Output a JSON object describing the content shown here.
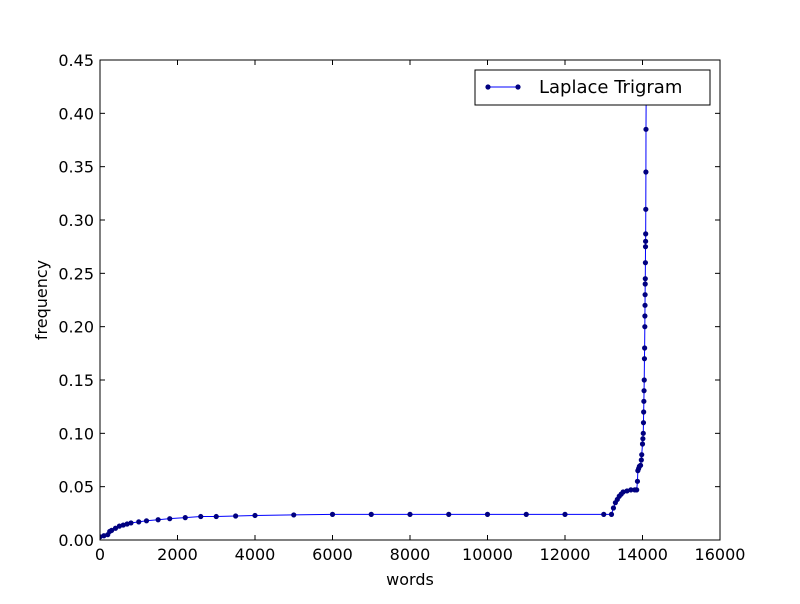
{
  "chart_data": {
    "type": "line",
    "title": "",
    "xlabel": "words",
    "ylabel": "frequency",
    "xlim": [
      0,
      16000
    ],
    "ylim": [
      0,
      0.45
    ],
    "x_ticks": [
      0,
      2000,
      4000,
      6000,
      8000,
      10000,
      12000,
      14000,
      16000
    ],
    "x_tick_labels": [
      "0",
      "2000",
      "4000",
      "6000",
      "8000",
      "10000",
      "12000",
      "14000",
      "16000"
    ],
    "y_ticks": [
      0,
      0.05,
      0.1,
      0.15,
      0.2,
      0.25,
      0.3,
      0.35,
      0.4,
      0.45
    ],
    "y_tick_labels": [
      "0.00",
      "0.05",
      "0.10",
      "0.15",
      "0.20",
      "0.25",
      "0.30",
      "0.35",
      "0.40",
      "0.45"
    ],
    "grid": false,
    "legend": {
      "position": "top-right",
      "entries": [
        "Laplace Trigram"
      ]
    },
    "colors": {
      "series": "#0000ff",
      "marker_face": "#000080"
    },
    "series": [
      {
        "name": "Laplace Trigram",
        "marker": "dot",
        "points": [
          [
            0,
            0.003
          ],
          [
            100,
            0.004
          ],
          [
            200,
            0.005
          ],
          [
            250,
            0.008
          ],
          [
            300,
            0.009
          ],
          [
            400,
            0.011
          ],
          [
            500,
            0.013
          ],
          [
            600,
            0.014
          ],
          [
            700,
            0.015
          ],
          [
            800,
            0.016
          ],
          [
            1000,
            0.017
          ],
          [
            1200,
            0.018
          ],
          [
            1500,
            0.019
          ],
          [
            1800,
            0.02
          ],
          [
            2200,
            0.021
          ],
          [
            2600,
            0.022
          ],
          [
            3000,
            0.022
          ],
          [
            3500,
            0.0225
          ],
          [
            4000,
            0.023
          ],
          [
            5000,
            0.0235
          ],
          [
            6000,
            0.024
          ],
          [
            7000,
            0.024
          ],
          [
            8000,
            0.024
          ],
          [
            9000,
            0.024
          ],
          [
            10000,
            0.024
          ],
          [
            11000,
            0.024
          ],
          [
            12000,
            0.024
          ],
          [
            13000,
            0.024
          ],
          [
            13200,
            0.024
          ],
          [
            13250,
            0.03
          ],
          [
            13300,
            0.035
          ],
          [
            13350,
            0.038
          ],
          [
            13400,
            0.041
          ],
          [
            13450,
            0.043
          ],
          [
            13500,
            0.045
          ],
          [
            13600,
            0.046
          ],
          [
            13700,
            0.047
          ],
          [
            13800,
            0.047
          ],
          [
            13850,
            0.047
          ],
          [
            13870,
            0.055
          ],
          [
            13880,
            0.065
          ],
          [
            13900,
            0.067
          ],
          [
            13920,
            0.069
          ],
          [
            13950,
            0.07
          ],
          [
            13970,
            0.075
          ],
          [
            13980,
            0.08
          ],
          [
            14000,
            0.09
          ],
          [
            14010,
            0.095
          ],
          [
            14020,
            0.1
          ],
          [
            14025,
            0.11
          ],
          [
            14030,
            0.12
          ],
          [
            14035,
            0.13
          ],
          [
            14040,
            0.14
          ],
          [
            14045,
            0.15
          ],
          [
            14050,
            0.17
          ],
          [
            14055,
            0.18
          ],
          [
            14060,
            0.2
          ],
          [
            14062,
            0.21
          ],
          [
            14065,
            0.22
          ],
          [
            14067,
            0.23
          ],
          [
            14070,
            0.24
          ],
          [
            14072,
            0.245
          ],
          [
            14075,
            0.26
          ],
          [
            14078,
            0.275
          ],
          [
            14080,
            0.28
          ],
          [
            14082,
            0.287
          ],
          [
            14085,
            0.31
          ],
          [
            14088,
            0.345
          ],
          [
            14090,
            0.385
          ],
          [
            14095,
            0.42
          ]
        ]
      }
    ]
  }
}
